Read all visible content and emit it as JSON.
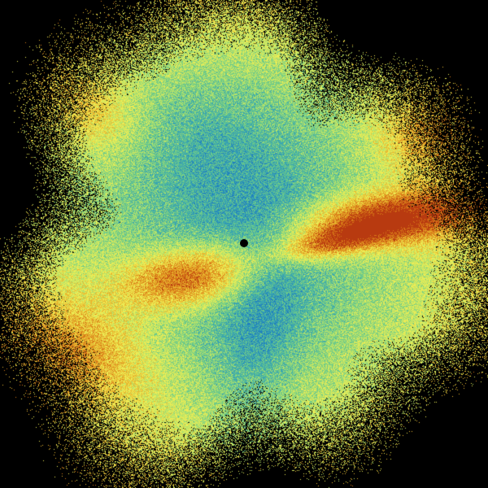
{
  "image": {
    "kind": "radar-sweep",
    "background": "#000000",
    "palette": [
      "#0d4f8f",
      "#1f7fbf",
      "#3aa6b0",
      "#6cc98a",
      "#b6e36a",
      "#ecec55",
      "#e8b830",
      "#d87a18",
      "#b83a10"
    ],
    "features": [
      {
        "name": "radar-site",
        "color": "#000000"
      },
      {
        "name": "west-high-region",
        "color": "#e8b830"
      },
      {
        "name": "east-high-region",
        "color": "#d87a18"
      }
    ]
  }
}
